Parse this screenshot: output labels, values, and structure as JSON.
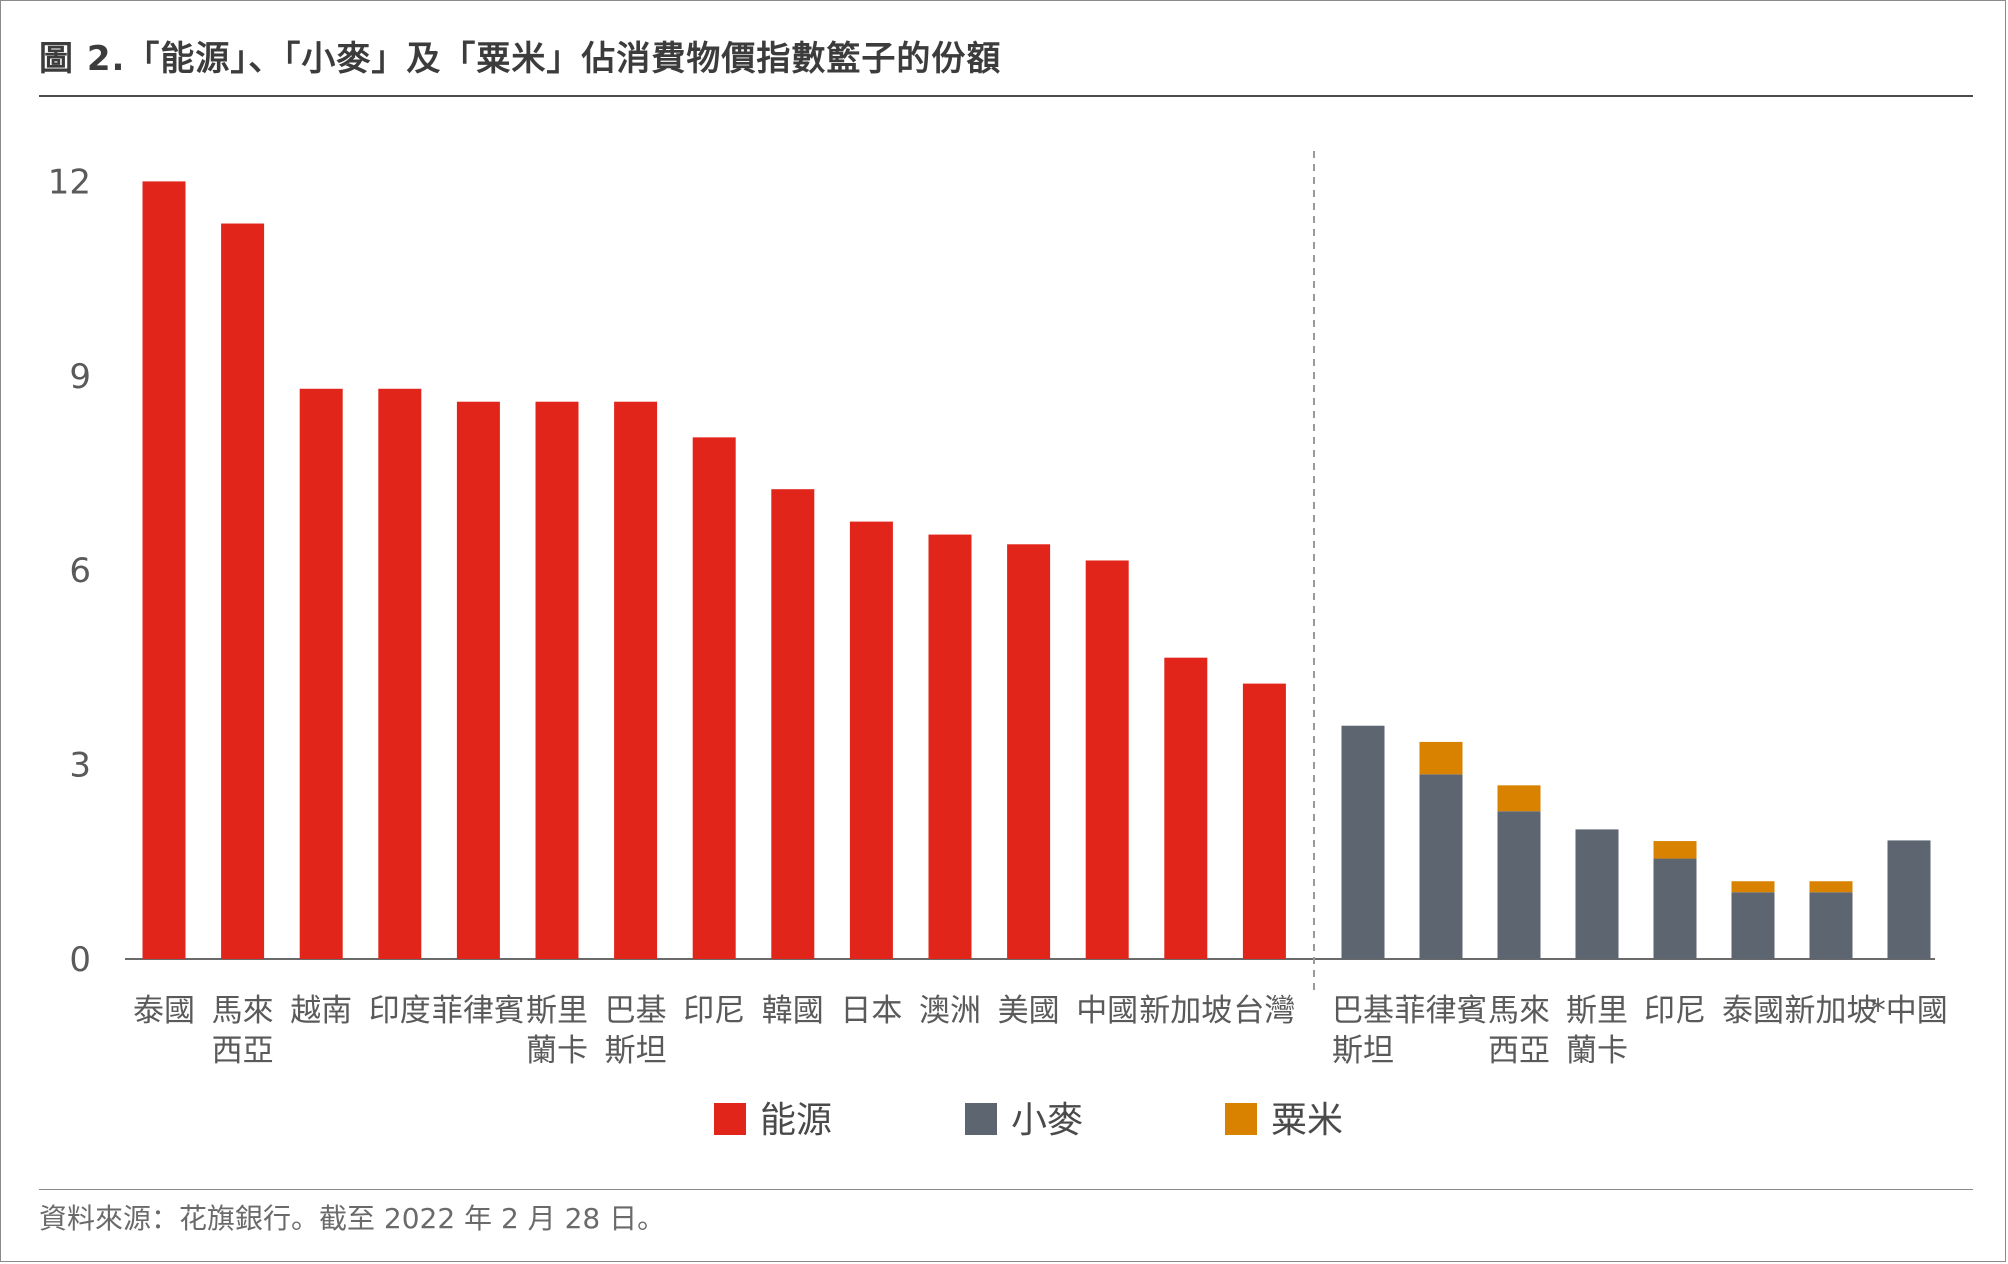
{
  "title": "圖 2.「能源」、「小麥」及「粟米」佔消費物價指數籃子的份額",
  "source": "資料來源：花旗銀行。截至 2022 年 2 月 28 日。",
  "colors": {
    "energy": "#e1251b",
    "wheat": "#5d6670",
    "corn": "#d98200"
  },
  "chart_data": {
    "type": "bar",
    "stacked": true,
    "ylim": [
      0,
      12.5
    ],
    "yticks": [
      0,
      3,
      6,
      9,
      12
    ],
    "grid": false,
    "legend_position": "bottom-center",
    "legend": [
      {
        "name": "能源",
        "color": "#e1251b"
      },
      {
        "name": "小麥",
        "color": "#5d6670"
      },
      {
        "name": "粟米",
        "color": "#d98200"
      }
    ],
    "groups": [
      {
        "categories": [
          [
            "泰國"
          ],
          [
            "馬來",
            "西亞"
          ],
          [
            "越南"
          ],
          [
            "印度"
          ],
          [
            "菲律賓"
          ],
          [
            "斯里",
            "蘭卡"
          ],
          [
            "巴基",
            "斯坦"
          ],
          [
            "印尼"
          ],
          [
            "韓國"
          ],
          [
            "日本"
          ],
          [
            "澳洲"
          ],
          [
            "美國"
          ],
          [
            "中國"
          ],
          [
            "新加坡"
          ],
          [
            "台灣"
          ]
        ],
        "series": [
          {
            "name": "能源",
            "values": [
              12.0,
              11.35,
              8.8,
              8.8,
              8.6,
              8.6,
              8.6,
              8.05,
              7.25,
              6.75,
              6.55,
              6.4,
              6.15,
              4.65,
              4.25
            ]
          }
        ]
      },
      {
        "categories": [
          [
            "巴基",
            "斯坦"
          ],
          [
            "菲律賓"
          ],
          [
            "馬來",
            "西亞"
          ],
          [
            "斯里",
            "蘭卡"
          ],
          [
            "印尼"
          ],
          [
            "泰國"
          ],
          [
            "新加坡"
          ],
          [
            "*中國"
          ]
        ],
        "series": [
          {
            "name": "小麥",
            "values": [
              3.6,
              2.85,
              2.28,
              2.0,
              1.55,
              1.03,
              1.03,
              1.83
            ]
          },
          {
            "name": "粟米",
            "values": [
              0,
              0.5,
              0.4,
              0,
              0.27,
              0.17,
              0.17,
              0
            ]
          }
        ]
      }
    ]
  }
}
